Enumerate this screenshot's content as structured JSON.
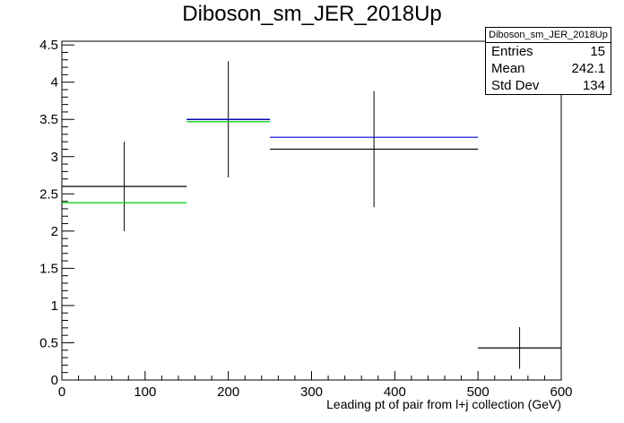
{
  "chart_data": {
    "type": "scatter",
    "title": "Diboson_sm_JER_2018Up",
    "xlabel": "Leading pt of pair from l+j collection (GeV)",
    "ylabel": "",
    "xlim": [
      0,
      600
    ],
    "ylim": [
      0,
      4.55
    ],
    "x_ticks": [
      "0",
      "100",
      "200",
      "300",
      "400",
      "500",
      "600"
    ],
    "y_ticks": [
      "0",
      "0.5",
      "1",
      "1.5",
      "2",
      "2.5",
      "3",
      "3.5",
      "4",
      "4.5"
    ],
    "grid": false,
    "stats_box": {
      "title": "Diboson_sm_JER_2018Up",
      "rows": [
        {
          "label": "Entries",
          "value": "15"
        },
        {
          "label": "Mean",
          "value": "242.1"
        },
        {
          "label": "Std Dev",
          "value": "134"
        }
      ]
    },
    "series": [
      {
        "color": "#000000",
        "points": [
          {
            "x_low": 0,
            "x_high": 150,
            "x": 75,
            "y": 2.6,
            "err": 0.6
          },
          {
            "x_low": 150,
            "x_high": 250,
            "x": 200,
            "y": 3.5,
            "err": 0.78
          },
          {
            "x_low": 250,
            "x_high": 500,
            "x": 375,
            "y": 3.1,
            "err": 0.78
          },
          {
            "x_low": 500,
            "x_high": 600,
            "x": 550,
            "y": 0.43,
            "err": 0.28
          }
        ]
      },
      {
        "color": "#00cc00",
        "points": [
          {
            "x_low": 0,
            "x_high": 150,
            "y": 2.38
          },
          {
            "x_low": 150,
            "x_high": 250,
            "y": 3.47
          }
        ]
      },
      {
        "color": "#0000cc",
        "points": [
          {
            "x_low": 150,
            "x_high": 250,
            "y": 3.5
          },
          {
            "x_low": 250,
            "x_high": 500,
            "y": 3.26
          }
        ]
      }
    ]
  }
}
